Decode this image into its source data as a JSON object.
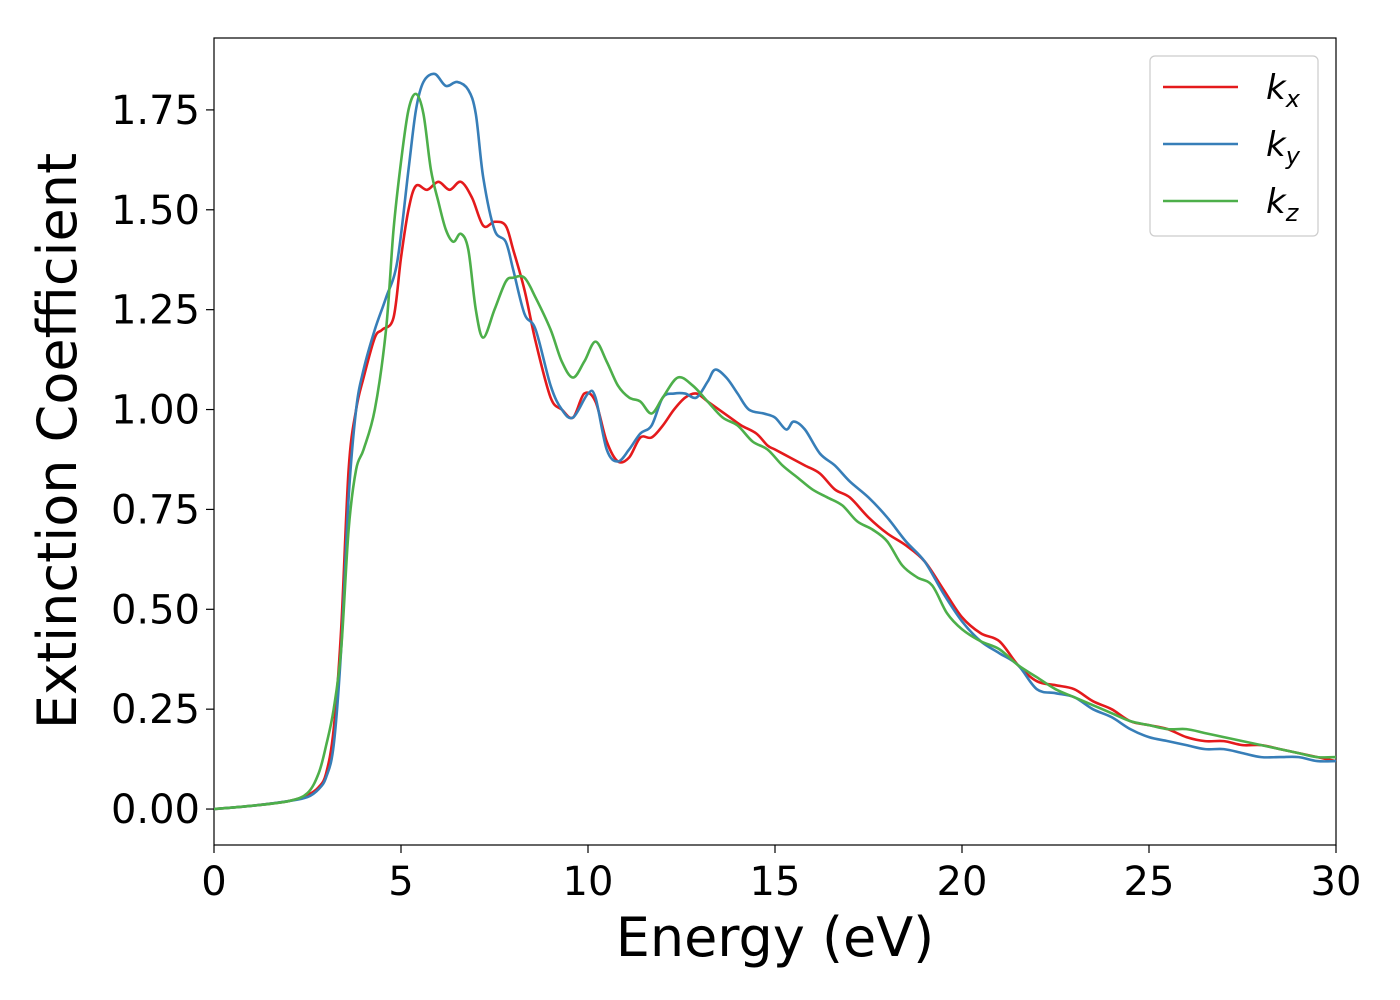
{
  "chart_data": {
    "type": "line",
    "title": "",
    "xlabel": "Energy (eV)",
    "ylabel": "Extinction Coefficient",
    "xlim": [
      0,
      30
    ],
    "ylim": [
      -0.09,
      1.93
    ],
    "xticks": [
      0,
      5,
      10,
      15,
      20,
      25,
      30
    ],
    "xtick_labels": [
      "0",
      "5",
      "10",
      "15",
      "20",
      "25",
      "30"
    ],
    "yticks": [
      0,
      0.25,
      0.5,
      0.75,
      1.0,
      1.25,
      1.5,
      1.75
    ],
    "ytick_labels": [
      "0.00",
      "0.25",
      "0.50",
      "0.75",
      "1.00",
      "1.25",
      "1.50",
      "1.75"
    ],
    "grid": false,
    "legend": {
      "position": "top-right"
    },
    "series": [
      {
        "name": "kx",
        "name_base": "k",
        "name_sub": "x",
        "color": "#e41a1c",
        "x": [
          0,
          1,
          2,
          2.5,
          2.8,
          3.0,
          3.2,
          3.4,
          3.6,
          3.8,
          4.0,
          4.3,
          4.5,
          4.8,
          5.0,
          5.2,
          5.4,
          5.7,
          6.0,
          6.3,
          6.6,
          6.9,
          7.2,
          7.5,
          7.8,
          8.0,
          8.3,
          8.6,
          9.0,
          9.3,
          9.6,
          9.9,
          10.2,
          10.5,
          10.8,
          11.1,
          11.4,
          11.7,
          12.0,
          12.3,
          12.6,
          12.9,
          13.2,
          13.5,
          13.8,
          14.1,
          14.5,
          14.8,
          15.0,
          15.4,
          15.8,
          16.2,
          16.6,
          17.0,
          17.5,
          18.0,
          18.5,
          19.0,
          19.5,
          20.0,
          20.5,
          21.0,
          21.5,
          22.0,
          22.5,
          23.0,
          23.5,
          24.0,
          24.5,
          25.0,
          25.5,
          26.0,
          26.5,
          27.0,
          27.5,
          28.0,
          28.5,
          29.0,
          29.5,
          30.0
        ],
        "y": [
          0.0,
          0.008,
          0.02,
          0.035,
          0.055,
          0.09,
          0.2,
          0.45,
          0.85,
          1.0,
          1.08,
          1.18,
          1.2,
          1.23,
          1.38,
          1.5,
          1.56,
          1.55,
          1.57,
          1.55,
          1.57,
          1.53,
          1.46,
          1.47,
          1.46,
          1.4,
          1.3,
          1.17,
          1.03,
          1.0,
          0.98,
          1.04,
          1.02,
          0.92,
          0.87,
          0.88,
          0.93,
          0.93,
          0.96,
          1.0,
          1.03,
          1.04,
          1.02,
          1.0,
          0.98,
          0.96,
          0.94,
          0.91,
          0.9,
          0.88,
          0.86,
          0.84,
          0.8,
          0.78,
          0.73,
          0.69,
          0.66,
          0.62,
          0.55,
          0.48,
          0.44,
          0.42,
          0.36,
          0.32,
          0.31,
          0.3,
          0.27,
          0.25,
          0.22,
          0.21,
          0.2,
          0.18,
          0.17,
          0.17,
          0.16,
          0.16,
          0.15,
          0.14,
          0.13,
          0.12
        ]
      },
      {
        "name": "ky",
        "name_base": "k",
        "name_sub": "y",
        "color": "#377eb8",
        "x": [
          0,
          1,
          2,
          2.5,
          2.8,
          3.0,
          3.2,
          3.4,
          3.6,
          3.8,
          4.0,
          4.3,
          4.6,
          4.9,
          5.2,
          5.4,
          5.6,
          5.9,
          6.2,
          6.5,
          6.8,
          7.0,
          7.2,
          7.5,
          7.8,
          8.0,
          8.3,
          8.6,
          9.0,
          9.3,
          9.6,
          10.0,
          10.2,
          10.5,
          10.8,
          11.1,
          11.4,
          11.7,
          12.0,
          12.3,
          12.6,
          12.9,
          13.2,
          13.4,
          13.7,
          14.0,
          14.3,
          14.7,
          15.0,
          15.3,
          15.5,
          15.8,
          16.2,
          16.6,
          17.0,
          17.5,
          18.0,
          18.5,
          19.0,
          19.5,
          20.0,
          20.5,
          21.0,
          21.5,
          22.0,
          22.5,
          23.0,
          23.5,
          24.0,
          24.5,
          25.0,
          25.5,
          26.0,
          26.5,
          27.0,
          27.5,
          28.0,
          28.5,
          29.0,
          29.5,
          30.0
        ],
        "y": [
          0.0,
          0.008,
          0.02,
          0.03,
          0.05,
          0.08,
          0.16,
          0.4,
          0.78,
          1.0,
          1.1,
          1.2,
          1.28,
          1.37,
          1.6,
          1.75,
          1.82,
          1.84,
          1.81,
          1.82,
          1.8,
          1.74,
          1.58,
          1.45,
          1.42,
          1.35,
          1.24,
          1.2,
          1.06,
          1.0,
          0.98,
          1.04,
          1.03,
          0.9,
          0.87,
          0.9,
          0.94,
          0.96,
          1.03,
          1.04,
          1.04,
          1.03,
          1.07,
          1.1,
          1.08,
          1.04,
          1.0,
          0.99,
          0.98,
          0.95,
          0.97,
          0.95,
          0.89,
          0.86,
          0.82,
          0.78,
          0.73,
          0.67,
          0.62,
          0.54,
          0.47,
          0.42,
          0.39,
          0.36,
          0.3,
          0.29,
          0.28,
          0.25,
          0.23,
          0.2,
          0.18,
          0.17,
          0.16,
          0.15,
          0.15,
          0.14,
          0.13,
          0.13,
          0.13,
          0.12,
          0.12
        ]
      },
      {
        "name": "kz",
        "name_base": "k",
        "name_sub": "z",
        "color": "#4daf4a",
        "x": [
          0,
          1,
          2,
          2.5,
          2.8,
          3.0,
          3.2,
          3.4,
          3.6,
          3.8,
          4.0,
          4.3,
          4.6,
          4.8,
          5.0,
          5.2,
          5.4,
          5.6,
          5.8,
          6.0,
          6.2,
          6.4,
          6.6,
          6.8,
          7.0,
          7.2,
          7.5,
          7.8,
          8.0,
          8.3,
          8.6,
          9.0,
          9.3,
          9.6,
          9.9,
          10.2,
          10.5,
          10.8,
          11.1,
          11.4,
          11.7,
          12.0,
          12.4,
          12.8,
          13.2,
          13.6,
          14.0,
          14.4,
          14.8,
          15.2,
          15.6,
          16.0,
          16.4,
          16.8,
          17.2,
          17.6,
          18.0,
          18.4,
          18.8,
          19.2,
          19.6,
          20.0,
          20.5,
          21.0,
          21.5,
          22.0,
          22.5,
          23.0,
          23.5,
          24.0,
          24.5,
          25.0,
          25.5,
          26.0,
          26.5,
          27.0,
          27.5,
          28.0,
          28.5,
          29.0,
          29.5,
          30.0
        ],
        "y": [
          0.0,
          0.008,
          0.02,
          0.04,
          0.09,
          0.16,
          0.25,
          0.4,
          0.7,
          0.85,
          0.9,
          1.0,
          1.2,
          1.45,
          1.62,
          1.75,
          1.79,
          1.74,
          1.6,
          1.52,
          1.45,
          1.42,
          1.44,
          1.4,
          1.25,
          1.18,
          1.25,
          1.32,
          1.33,
          1.33,
          1.28,
          1.2,
          1.12,
          1.08,
          1.12,
          1.17,
          1.12,
          1.06,
          1.03,
          1.02,
          0.99,
          1.03,
          1.08,
          1.06,
          1.02,
          0.98,
          0.96,
          0.92,
          0.9,
          0.86,
          0.83,
          0.8,
          0.78,
          0.76,
          0.72,
          0.7,
          0.67,
          0.61,
          0.58,
          0.56,
          0.49,
          0.45,
          0.42,
          0.4,
          0.36,
          0.33,
          0.3,
          0.28,
          0.26,
          0.24,
          0.22,
          0.21,
          0.2,
          0.2,
          0.19,
          0.18,
          0.17,
          0.16,
          0.15,
          0.14,
          0.13,
          0.13
        ]
      }
    ]
  }
}
